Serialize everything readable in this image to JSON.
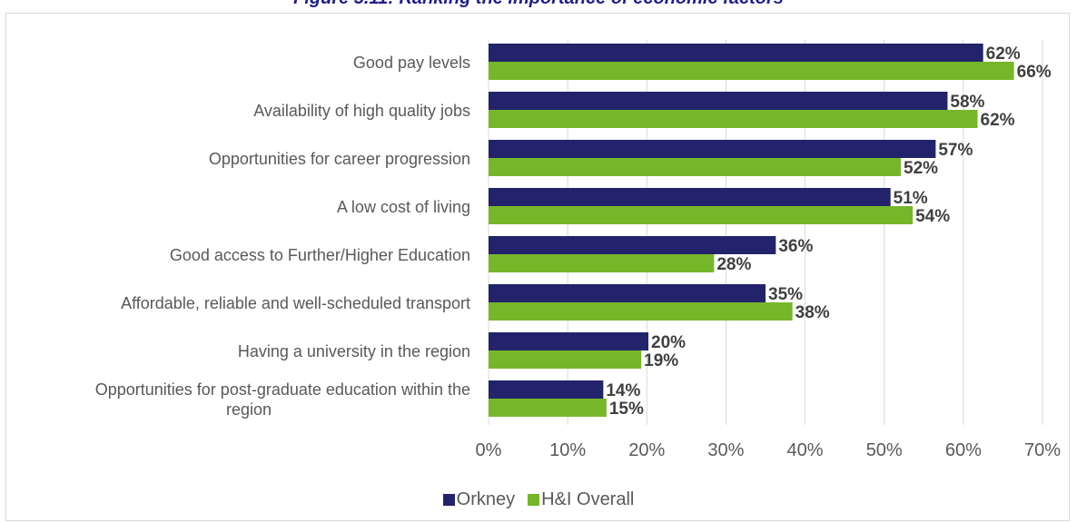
{
  "figure_title": "Figure 5.11: Ranking the importance of economic factors",
  "chart_data": {
    "type": "bar",
    "orientation": "horizontal",
    "categories": [
      "Good pay levels",
      "Availability of high quality jobs",
      "Opportunities for career progression",
      "A low cost of living",
      "Good access to Further/Higher Education",
      "Affordable, reliable and well-scheduled transport",
      "Having a university in the region",
      "Opportunities for post-graduate education within the region"
    ],
    "series": [
      {
        "name": "Orkney",
        "color": "#23236b",
        "values": [
          62.5,
          58,
          56.5,
          50.8,
          36.3,
          35,
          20.2,
          14.5
        ],
        "labels": [
          "62%",
          "58%",
          "57%",
          "51%",
          "36%",
          "35%",
          "20%",
          "14%"
        ]
      },
      {
        "name": "H&I Overall",
        "color": "#76b72a",
        "values": [
          66.4,
          61.8,
          52.1,
          53.6,
          28.5,
          38.4,
          19.3,
          14.9
        ],
        "labels": [
          "66%",
          "62%",
          "52%",
          "54%",
          "28%",
          "38%",
          "19%",
          "15%"
        ]
      }
    ],
    "xlim": [
      0,
      70
    ],
    "x_ticks": [
      "0%",
      "10%",
      "20%",
      "30%",
      "40%",
      "50%",
      "60%",
      "70%"
    ],
    "grid": true,
    "legend_position": "bottom"
  }
}
